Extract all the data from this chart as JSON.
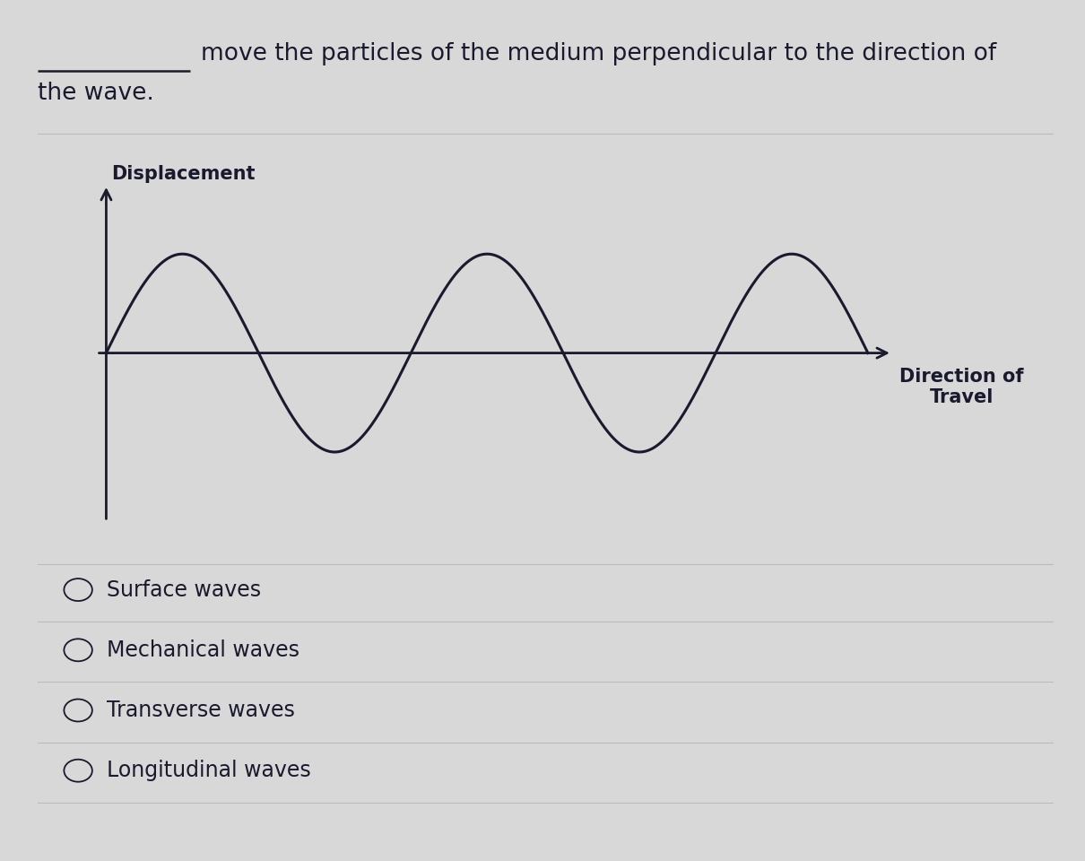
{
  "background_color": "#d8d8d8",
  "question_text_line1": "move the particles of the medium perpendicular to the direction of",
  "question_text_line2": "the wave.",
  "displacement_label": "Displacement",
  "direction_label": "Direction of\nTravel",
  "wave_color": "#1a1a2e",
  "axis_color": "#1a1a2e",
  "options": [
    "Surface waves",
    "Mechanical waves",
    "Transverse waves",
    "Longitudinal waves"
  ],
  "text_color": "#1a1a2e",
  "separator_color": "#bbbbbb",
  "question_fontsize": 19,
  "axis_label_fontsize": 15,
  "option_fontsize": 17,
  "wave_periods": 2.5,
  "wave_xlim_min": -0.4,
  "wave_xlim_max": 17.5,
  "wave_ylim_min": -2.0,
  "wave_ylim_max": 2.0
}
